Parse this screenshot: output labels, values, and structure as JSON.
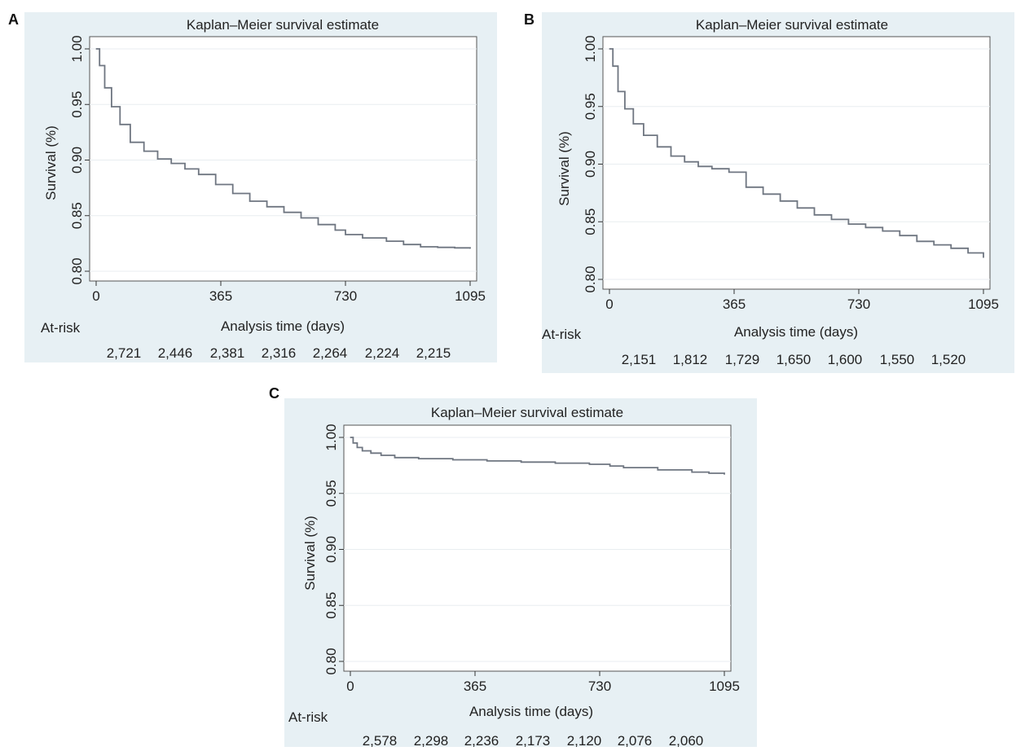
{
  "chart_data": [
    {
      "type": "line",
      "panel_label": "A",
      "title": "Kaplan–Meier survival estimate",
      "xlabel": "Analysis time (days)",
      "ylabel": "Survival (%)",
      "xlim": [
        0,
        1095
      ],
      "ylim": [
        0.8,
        1.0
      ],
      "x_ticks": [
        "0",
        "365",
        "730",
        "1095"
      ],
      "y_ticks": [
        "0.80",
        "0.85",
        "0.90",
        "0.95",
        "1.00"
      ],
      "grid": true,
      "series": [
        {
          "x": [
            0,
            10,
            25,
            45,
            70,
            100,
            140,
            180,
            220,
            260,
            300,
            350,
            400,
            450,
            500,
            550,
            600,
            650,
            700,
            730,
            780,
            850,
            900,
            950,
            1000,
            1050,
            1095
          ],
          "y": [
            1.0,
            0.985,
            0.965,
            0.948,
            0.932,
            0.916,
            0.908,
            0.901,
            0.897,
            0.892,
            0.887,
            0.878,
            0.87,
            0.863,
            0.858,
            0.853,
            0.848,
            0.842,
            0.837,
            0.833,
            0.83,
            0.827,
            0.824,
            0.822,
            0.8215,
            0.821,
            0.8205
          ]
        }
      ],
      "at_risk": {
        "label": "At-risk",
        "values": [
          "2,721",
          "2,446",
          "2,381",
          "2,316",
          "2,264",
          "2,224",
          "2,215"
        ]
      },
      "colors": {
        "line": "#6f7681",
        "panel_bg": "#e7f0f4",
        "plot_bg": "#ffffff",
        "grid": "#e8edf0"
      }
    },
    {
      "type": "line",
      "panel_label": "B",
      "title": "Kaplan–Meier survival estimate",
      "xlabel": "Analysis time (days)",
      "ylabel": "Survival (%)",
      "xlim": [
        0,
        1095
      ],
      "ylim": [
        0.8,
        1.0
      ],
      "x_ticks": [
        "0",
        "365",
        "730",
        "1095"
      ],
      "y_ticks": [
        "0.80",
        "0.85",
        "0.90",
        "0.95",
        "1.00"
      ],
      "grid": true,
      "series": [
        {
          "x": [
            0,
            10,
            25,
            45,
            70,
            100,
            140,
            180,
            220,
            260,
            300,
            350,
            400,
            450,
            500,
            550,
            600,
            650,
            700,
            750,
            800,
            850,
            900,
            950,
            1000,
            1050,
            1095
          ],
          "y": [
            1.0,
            0.985,
            0.963,
            0.948,
            0.935,
            0.925,
            0.915,
            0.907,
            0.902,
            0.898,
            0.896,
            0.893,
            0.88,
            0.874,
            0.868,
            0.862,
            0.856,
            0.852,
            0.848,
            0.845,
            0.842,
            0.838,
            0.833,
            0.83,
            0.827,
            0.823,
            0.819
          ]
        }
      ],
      "at_risk": {
        "label": "At-risk",
        "values": [
          "2,151",
          "1,812",
          "1,729",
          "1,650",
          "1,600",
          "1,550",
          "1,520"
        ]
      },
      "colors": {
        "line": "#6f7681",
        "panel_bg": "#e7f0f4",
        "plot_bg": "#ffffff",
        "grid": "#e8edf0"
      }
    },
    {
      "type": "line",
      "panel_label": "C",
      "title": "Kaplan–Meier survival estimate",
      "xlabel": "Analysis time (days)",
      "ylabel": "Survival (%)",
      "xlim": [
        0,
        1095
      ],
      "ylim": [
        0.8,
        1.0
      ],
      "x_ticks": [
        "0",
        "365",
        "730",
        "1095"
      ],
      "y_ticks": [
        "0.80",
        "0.85",
        "0.90",
        "0.95",
        "1.00"
      ],
      "grid": true,
      "series": [
        {
          "x": [
            0,
            8,
            20,
            35,
            60,
            90,
            130,
            200,
            300,
            400,
            500,
            600,
            700,
            760,
            800,
            900,
            1000,
            1050,
            1095
          ],
          "y": [
            1.0,
            0.995,
            0.991,
            0.988,
            0.986,
            0.984,
            0.982,
            0.981,
            0.98,
            0.979,
            0.978,
            0.977,
            0.976,
            0.9745,
            0.973,
            0.971,
            0.969,
            0.968,
            0.967
          ]
        }
      ],
      "at_risk": {
        "label": "At-risk",
        "values": [
          "2,578",
          "2,298",
          "2,236",
          "2,173",
          "2,120",
          "2,076",
          "2,060"
        ]
      },
      "colors": {
        "line": "#6f7681",
        "panel_bg": "#e7f0f4",
        "plot_bg": "#ffffff",
        "grid": "#e8edf0"
      }
    }
  ]
}
